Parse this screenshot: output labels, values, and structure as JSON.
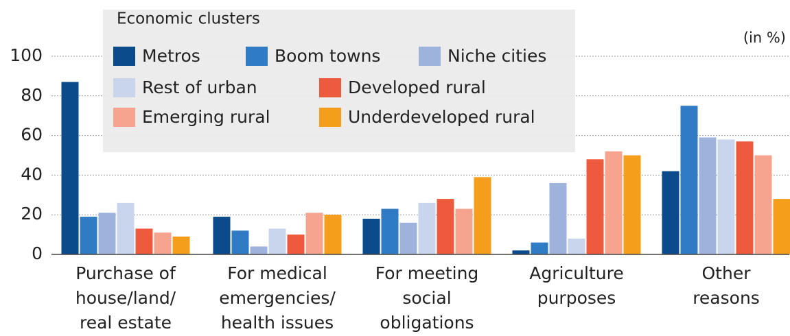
{
  "chart_data": {
    "type": "bar",
    "legend_title": "Economic clusters",
    "unit_label": "(in %)",
    "categories": [
      [
        "Purchase of",
        "house/land/",
        "real estate"
      ],
      [
        "For medical",
        "emergencies/",
        "health issues"
      ],
      [
        "For meeting",
        "social",
        "obligations"
      ],
      [
        "Agriculture",
        "purposes"
      ],
      [
        "Other",
        "reasons"
      ]
    ],
    "series": [
      {
        "name": "Metros",
        "color": "#0b4a8b",
        "values": [
          87,
          19,
          18,
          2,
          42
        ]
      },
      {
        "name": "Boom towns",
        "color": "#2f7bc4",
        "values": [
          19,
          12,
          23,
          6,
          75
        ]
      },
      {
        "name": "Niche cities",
        "color": "#9db3dc",
        "values": [
          21,
          4,
          16,
          36,
          59
        ]
      },
      {
        "name": "Rest of urban",
        "color": "#c9d5ec",
        "values": [
          26,
          13,
          26,
          8,
          58
        ]
      },
      {
        "name": "Developed rural",
        "color": "#ee5a3e",
        "values": [
          13,
          10,
          28,
          48,
          57
        ]
      },
      {
        "name": "Emerging rural",
        "color": "#f6a38f",
        "values": [
          11,
          21,
          23,
          52,
          50
        ]
      },
      {
        "name": "Underdeveloped rural",
        "color": "#f59e1b",
        "values": [
          9,
          20,
          39,
          50,
          28
        ]
      }
    ],
    "ylim": [
      0,
      100
    ],
    "yticks": [
      0,
      20,
      40,
      60,
      80,
      100
    ],
    "grid": true
  }
}
